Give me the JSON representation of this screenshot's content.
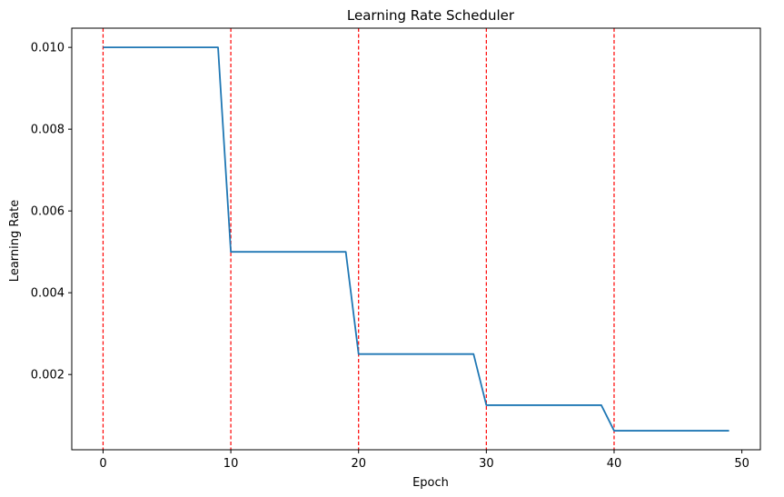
{
  "chart_data": {
    "type": "line",
    "title": "Learning Rate Scheduler",
    "xlabel": "Epoch",
    "ylabel": "Learning Rate",
    "xlim": [
      -2.45,
      51.45
    ],
    "ylim": [
      0.00016,
      0.01047
    ],
    "xticks": [
      0,
      10,
      20,
      30,
      40,
      50
    ],
    "xtick_labels": [
      "0",
      "10",
      "20",
      "30",
      "40",
      "50"
    ],
    "yticks": [
      0.002,
      0.004,
      0.006,
      0.008,
      0.01
    ],
    "ytick_labels": [
      "0.002",
      "0.004",
      "0.006",
      "0.008",
      "0.010"
    ],
    "grid": false,
    "legend": "none",
    "series": [
      {
        "color": "#1f77b4",
        "x": [
          0,
          1,
          2,
          3,
          4,
          5,
          6,
          7,
          8,
          9,
          10,
          11,
          12,
          13,
          14,
          15,
          16,
          17,
          18,
          19,
          20,
          21,
          22,
          23,
          24,
          25,
          26,
          27,
          28,
          29,
          30,
          31,
          32,
          33,
          34,
          35,
          36,
          37,
          38,
          39,
          40,
          41,
          42,
          43,
          44,
          45,
          46,
          47,
          48,
          49
        ],
        "y": [
          0.01,
          0.01,
          0.01,
          0.01,
          0.01,
          0.01,
          0.01,
          0.01,
          0.01,
          0.01,
          0.005,
          0.005,
          0.005,
          0.005,
          0.005,
          0.005,
          0.005,
          0.005,
          0.005,
          0.005,
          0.0025,
          0.0025,
          0.0025,
          0.0025,
          0.0025,
          0.0025,
          0.0025,
          0.0025,
          0.0025,
          0.0025,
          0.00125,
          0.00125,
          0.00125,
          0.00125,
          0.00125,
          0.00125,
          0.00125,
          0.00125,
          0.00125,
          0.00125,
          0.000625,
          0.000625,
          0.000625,
          0.000625,
          0.000625,
          0.000625,
          0.000625,
          0.000625,
          0.000625,
          0.000625
        ]
      }
    ],
    "vlines": {
      "x": [
        0,
        10,
        20,
        30,
        40
      ],
      "color": "#ff0000",
      "style": "dashed"
    }
  }
}
